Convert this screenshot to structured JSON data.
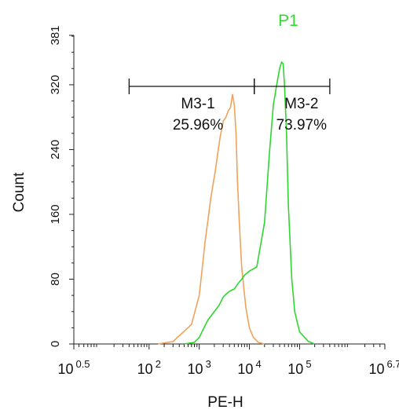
{
  "chart_data": {
    "type": "line",
    "title": "P1",
    "xlabel": "PE-H",
    "ylabel": "Count",
    "x_scale": "log",
    "xlim": [
      3.1623,
      5011872
    ],
    "ylim": [
      0,
      381
    ],
    "x_ticks": [
      {
        "base": "10",
        "exp": "0.5",
        "value": 3.1623
      },
      {
        "base": "10",
        "exp": "2",
        "value": 100
      },
      {
        "base": "10",
        "exp": "3",
        "value": 1000
      },
      {
        "base": "10",
        "exp": "4",
        "value": 10000
      },
      {
        "base": "10",
        "exp": "5",
        "value": 100000
      },
      {
        "base": "10",
        "exp": "6.7",
        "value": 5011872
      }
    ],
    "y_ticks": [
      "0",
      "80",
      "160",
      "240",
      "320",
      "381"
    ],
    "y_tick_values": [
      0,
      80,
      160,
      240,
      320,
      381
    ],
    "grid": false,
    "series": [
      {
        "color": "#f0a25a",
        "x": [
          150,
          300,
          700,
          1000,
          1300,
          1700,
          2100,
          2600,
          3000,
          3400,
          3800,
          4200,
          4600,
          5000,
          5400,
          5800,
          6300,
          7000,
          7700,
          8500,
          10000,
          12000,
          15000,
          20000
        ],
        "y": [
          0,
          3,
          24,
          60,
          125,
          180,
          215,
          255,
          275,
          280,
          288,
          292,
          308,
          295,
          260,
          200,
          150,
          95,
          70,
          45,
          20,
          8,
          2,
          0
        ]
      },
      {
        "color": "#2fd62f",
        "x": [
          500,
          800,
          1000,
          1200,
          1500,
          2000,
          2500,
          3000,
          3500,
          4000,
          5000,
          6000,
          7000,
          8000,
          10000,
          14000,
          20000,
          25000,
          30000,
          35000,
          40000,
          44000,
          47000,
          50000,
          55000,
          60000,
          70000,
          80000,
          100000,
          150000,
          200000
        ],
        "y": [
          0,
          2,
          8,
          18,
          30,
          40,
          48,
          58,
          62,
          65,
          68,
          75,
          80,
          85,
          90,
          95,
          150,
          235,
          295,
          320,
          340,
          348,
          346,
          320,
          260,
          170,
          80,
          40,
          15,
          3,
          0
        ]
      }
    ],
    "markers": [
      {
        "label": "M3-1",
        "percent": "25.96%",
        "x_start": 40,
        "x_end": 12500,
        "y": 318
      },
      {
        "label": "M3-2",
        "percent": "73.97%",
        "x_start": 12500,
        "x_end": 400000,
        "y": 318
      }
    ]
  }
}
